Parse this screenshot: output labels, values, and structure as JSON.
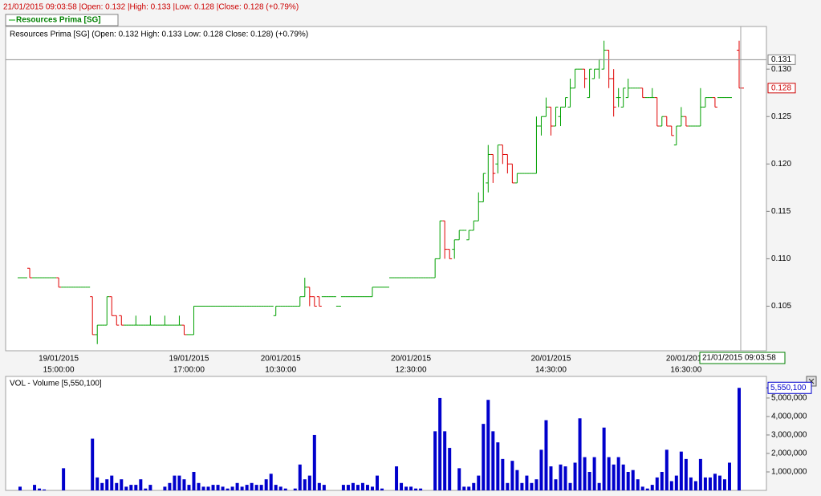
{
  "header": "21/01/2015 09:03:58 |Open: 0.132 |High: 0.133 |Low: 0.128 |Close: 0.128 (+0.79%)",
  "chart_data": [
    {
      "type": "ohlc",
      "title": "Resources Prima [SG] (Open: 0.132  High: 0.133  Low: 0.128  Close: 0.128) (+0.79%)",
      "categories": [
        null,
        null,
        null,
        null,
        null,
        null,
        null,
        null,
        [
          "19/01/2015",
          "15:00:00"
        ],
        null,
        null,
        null,
        null,
        null,
        null,
        null,
        null,
        null,
        null,
        null,
        null,
        null,
        null,
        null,
        null,
        null,
        null,
        null,
        null,
        null,
        null,
        null,
        null,
        null,
        null,
        [
          "19/01/2015",
          "17:00:00"
        ],
        null,
        null,
        null,
        null,
        null,
        null,
        null,
        null,
        null,
        null,
        null,
        null,
        null,
        null,
        null,
        null,
        null,
        null,
        [
          "20/01/2015",
          "10:30:00"
        ],
        null,
        null,
        null,
        null,
        null,
        null,
        null,
        null,
        null,
        null,
        null,
        null,
        null,
        null,
        null,
        null,
        null,
        null,
        null,
        null,
        null,
        null,
        null,
        null,
        null,
        null,
        [
          "20/01/2015",
          "12:30:00"
        ],
        null,
        null,
        null,
        null,
        null,
        null,
        null,
        null,
        null,
        null,
        null,
        null,
        null,
        null,
        null,
        null,
        null,
        null,
        null,
        null,
        null,
        null,
        null,
        null,
        null,
        null,
        null,
        null,
        [
          "20/01/2015",
          "14:30:00"
        ],
        null,
        null,
        null,
        null,
        null,
        null,
        null,
        null,
        null,
        null,
        null,
        null,
        null,
        null,
        null,
        null,
        null,
        null,
        null,
        null,
        null,
        null,
        null,
        null,
        null,
        null,
        null,
        [
          "20/01/2015",
          "16:30:00"
        ],
        null,
        null,
        null,
        null,
        null,
        null,
        null,
        null,
        null,
        null,
        null
      ],
      "series": [
        {
          "name": "Resources Prima [SG]",
          "up_color": "#00a000",
          "down_color": "#e00000",
          "open": [
            0.108,
            0.108,
            0.109,
            0.108,
            0.108,
            0.108,
            0.108,
            0.108,
            0.108,
            0.107,
            0.107,
            0.107,
            0.107,
            0.107,
            0.107,
            0.106,
            0.102,
            0.103,
            0.103,
            0.106,
            0.104,
            0.104,
            0.103,
            0.103,
            0.103,
            0.103,
            0.103,
            0.103,
            0.103,
            0.103,
            0.103,
            0.103,
            0.103,
            0.103,
            0.103,
            0.102,
            0.102,
            0.105,
            0.105,
            0.105,
            0.105,
            0.105,
            0.105,
            0.105,
            0.105,
            0.105,
            0.105,
            0.105,
            0.105,
            0.105,
            0.105,
            0.105,
            0.105,
            0.104,
            0.105,
            0.105,
            0.105,
            0.105,
            0.105,
            0.106,
            0.107,
            0.106,
            0.106,
            0.106,
            0.106,
            0.106,
            0.105,
            0.106,
            0.106,
            0.106,
            0.106,
            0.106,
            0.106,
            0.106,
            0.107,
            0.107,
            0.107,
            0.108,
            0.108,
            0.108,
            0.108,
            0.108,
            0.108,
            0.108,
            0.108,
            0.108,
            0.108,
            0.11,
            0.114,
            0.111,
            0.111,
            0.112,
            0.113,
            0.112,
            0.113,
            0.114,
            0.116,
            0.118,
            0.121,
            0.12,
            0.122,
            0.121,
            0.12,
            0.118,
            0.119,
            0.119,
            0.119,
            0.119,
            0.124,
            0.125,
            0.126,
            0.124,
            0.125,
            0.126,
            0.126,
            0.128,
            0.13,
            0.13,
            0.127,
            0.129,
            0.13,
            0.13,
            0.132,
            0.129,
            0.127,
            0.126,
            0.127,
            0.128,
            0.128,
            0.128,
            0.127,
            0.127,
            0.127,
            0.124,
            0.125,
            0.124,
            0.122,
            0.124,
            0.125,
            0.124,
            0.124,
            0.124,
            0.126,
            0.127,
            0.127,
            0.127,
            0.127,
            0.127,
            null,
            0.132
          ],
          "high": [
            0.108,
            0.108,
            0.109,
            0.108,
            0.108,
            0.108,
            0.108,
            0.108,
            0.108,
            0.107,
            0.107,
            0.107,
            0.107,
            0.107,
            0.107,
            0.106,
            0.103,
            0.103,
            0.106,
            0.106,
            0.104,
            0.104,
            0.103,
            0.103,
            0.104,
            0.103,
            0.103,
            0.104,
            0.103,
            0.103,
            0.104,
            0.103,
            0.103,
            0.104,
            0.103,
            0.102,
            0.105,
            0.105,
            0.105,
            0.105,
            0.105,
            0.105,
            0.105,
            0.105,
            0.105,
            0.105,
            0.105,
            0.105,
            0.105,
            0.105,
            0.105,
            0.105,
            0.105,
            0.105,
            0.105,
            0.105,
            0.105,
            0.105,
            0.106,
            0.108,
            0.107,
            0.106,
            0.106,
            0.106,
            0.106,
            0.106,
            0.105,
            0.106,
            0.106,
            0.106,
            0.106,
            0.106,
            0.106,
            0.107,
            0.107,
            0.107,
            0.107,
            0.108,
            0.108,
            0.108,
            0.108,
            0.108,
            0.108,
            0.108,
            0.108,
            0.108,
            0.11,
            0.114,
            0.114,
            0.111,
            0.112,
            0.113,
            0.113,
            0.113,
            0.114,
            0.117,
            0.119,
            0.122,
            0.121,
            0.122,
            0.122,
            0.121,
            0.12,
            0.119,
            0.119,
            0.119,
            0.119,
            0.125,
            0.125,
            0.127,
            0.126,
            0.126,
            0.126,
            0.127,
            0.129,
            0.13,
            0.13,
            0.13,
            0.13,
            0.13,
            0.131,
            0.133,
            0.132,
            0.13,
            0.128,
            0.128,
            0.129,
            0.128,
            0.128,
            0.128,
            0.127,
            0.128,
            0.127,
            0.125,
            0.125,
            0.124,
            0.124,
            0.126,
            0.125,
            0.124,
            0.124,
            0.128,
            0.127,
            0.127,
            0.127,
            0.127,
            0.127,
            0.127,
            null,
            0.133
          ],
          "low": [
            0.108,
            0.108,
            0.108,
            0.108,
            0.108,
            0.108,
            0.108,
            0.108,
            0.107,
            0.107,
            0.107,
            0.107,
            0.107,
            0.107,
            0.107,
            0.102,
            0.101,
            0.103,
            0.103,
            0.104,
            0.103,
            0.103,
            0.103,
            0.103,
            0.103,
            0.103,
            0.103,
            0.103,
            0.103,
            0.103,
            0.103,
            0.103,
            0.103,
            0.103,
            0.102,
            0.102,
            0.102,
            0.105,
            0.105,
            0.105,
            0.105,
            0.105,
            0.105,
            0.105,
            0.105,
            0.105,
            0.105,
            0.105,
            0.105,
            0.105,
            0.105,
            0.105,
            0.105,
            0.104,
            0.105,
            0.105,
            0.105,
            0.105,
            0.105,
            0.106,
            0.105,
            0.105,
            0.105,
            0.106,
            0.106,
            0.106,
            0.105,
            0.106,
            0.106,
            0.106,
            0.106,
            0.106,
            0.106,
            0.106,
            0.107,
            0.107,
            0.107,
            0.108,
            0.108,
            0.108,
            0.108,
            0.108,
            0.108,
            0.108,
            0.108,
            0.108,
            0.108,
            0.11,
            0.11,
            0.11,
            0.11,
            0.112,
            0.113,
            0.112,
            0.113,
            0.114,
            0.116,
            0.117,
            0.118,
            0.119,
            0.12,
            0.119,
            0.118,
            0.118,
            0.119,
            0.119,
            0.119,
            0.119,
            0.123,
            0.125,
            0.123,
            0.124,
            0.124,
            0.126,
            0.126,
            0.128,
            0.13,
            0.128,
            0.127,
            0.129,
            0.129,
            0.13,
            0.128,
            0.125,
            0.126,
            0.126,
            0.127,
            0.128,
            0.128,
            0.127,
            0.127,
            0.127,
            0.124,
            0.124,
            0.124,
            0.123,
            0.122,
            0.124,
            0.124,
            0.124,
            0.124,
            0.124,
            0.126,
            0.127,
            0.126,
            0.127,
            0.127,
            0.127,
            null,
            0.128
          ],
          "close": [
            0.108,
            0.108,
            0.108,
            0.108,
            0.108,
            0.108,
            0.108,
            0.108,
            0.107,
            0.107,
            0.107,
            0.107,
            0.107,
            0.107,
            0.107,
            0.102,
            0.103,
            0.103,
            0.106,
            0.104,
            0.103,
            0.103,
            0.103,
            0.103,
            0.103,
            0.103,
            0.103,
            0.103,
            0.103,
            0.103,
            0.103,
            0.103,
            0.103,
            0.103,
            0.102,
            0.102,
            0.105,
            0.105,
            0.105,
            0.105,
            0.105,
            0.105,
            0.105,
            0.105,
            0.105,
            0.105,
            0.105,
            0.105,
            0.105,
            0.105,
            0.105,
            0.105,
            0.105,
            0.105,
            0.105,
            0.105,
            0.105,
            0.105,
            0.106,
            0.107,
            0.106,
            0.105,
            0.105,
            0.106,
            0.106,
            0.106,
            0.105,
            0.106,
            0.106,
            0.106,
            0.106,
            0.106,
            0.106,
            0.107,
            0.107,
            0.107,
            0.107,
            0.108,
            0.108,
            0.108,
            0.108,
            0.108,
            0.108,
            0.108,
            0.108,
            0.108,
            0.11,
            0.114,
            0.111,
            0.11,
            0.112,
            0.113,
            0.113,
            0.113,
            0.114,
            0.116,
            0.119,
            0.121,
            0.119,
            0.122,
            0.121,
            0.12,
            0.118,
            0.119,
            0.119,
            0.119,
            0.119,
            0.124,
            0.125,
            0.126,
            0.124,
            0.126,
            0.126,
            0.127,
            0.128,
            0.13,
            0.13,
            0.129,
            0.13,
            0.13,
            0.131,
            0.132,
            0.129,
            0.126,
            0.127,
            0.128,
            0.128,
            0.128,
            0.128,
            0.127,
            0.127,
            0.127,
            0.124,
            0.125,
            0.124,
            0.123,
            0.124,
            0.125,
            0.124,
            0.124,
            0.124,
            0.126,
            0.127,
            0.127,
            0.126,
            0.127,
            0.127,
            0.127,
            null,
            0.128
          ]
        }
      ],
      "ylim": [
        0.1003,
        0.1345
      ],
      "yticks": [
        0.105,
        {
          "value": 0.11,
          "label": "0.110"
        },
        0.115,
        {
          "value": 0.12,
          "label": "0.120"
        },
        0.125,
        {
          "value": 0.13,
          "label": "0.130"
        }
      ],
      "hline": 0.131,
      "last_close": 0.128,
      "crosshair_label": "21/01/2015 09:03:58"
    },
    {
      "type": "bar",
      "title": "VOL - Volume [5,550,100]",
      "color": "#0000cc",
      "values": [
        200000,
        0,
        0,
        300000,
        100000,
        50000,
        0,
        0,
        0,
        1200000,
        0,
        0,
        0,
        0,
        0,
        2800000,
        700000,
        400000,
        600000,
        800000,
        400000,
        600000,
        200000,
        300000,
        300000,
        600000,
        100000,
        300000,
        0,
        0,
        200000,
        400000,
        800000,
        800000,
        600000,
        300000,
        1000000,
        400000,
        200000,
        200000,
        300000,
        300000,
        200000,
        100000,
        200000,
        400000,
        200000,
        300000,
        400000,
        300000,
        300000,
        600000,
        900000,
        300000,
        200000,
        100000,
        0,
        100000,
        1400000,
        600000,
        800000,
        3000000,
        400000,
        300000,
        0,
        0,
        0,
        300000,
        300000,
        400000,
        300000,
        400000,
        300000,
        200000,
        800000,
        100000,
        0,
        0,
        1300000,
        400000,
        200000,
        200000,
        100000,
        100000,
        0,
        0,
        3200000,
        5000000,
        3200000,
        2300000,
        0,
        1200000,
        200000,
        200000,
        400000,
        800000,
        3600000,
        4900000,
        3200000,
        2600000,
        1700000,
        400000,
        1600000,
        1100000,
        400000,
        800000,
        400000,
        600000,
        2200000,
        3800000,
        1300000,
        600000,
        1400000,
        1300000,
        400000,
        1500000,
        3900000,
        1800000,
        1000000,
        1800000,
        400000,
        3400000,
        1800000,
        1400000,
        1800000,
        1400000,
        1000000,
        1100000,
        600000,
        200000,
        100000,
        300000,
        700000,
        1000000,
        2200000,
        500000,
        800000,
        2100000,
        1700000,
        700000,
        500000,
        1700000,
        700000,
        700000,
        900000,
        800000,
        600000,
        1500000,
        0,
        5550100
      ],
      "ylim": [
        0,
        6170000
      ],
      "yticks": [
        {
          "value": 1000000,
          "label": "1,000,000"
        },
        {
          "value": 2000000,
          "label": "2,000,000"
        },
        {
          "value": 3000000,
          "label": "3,000,000"
        },
        {
          "value": 4000000,
          "label": "4,000,000"
        },
        {
          "value": 5000000,
          "label": "5,000,000"
        }
      ],
      "last_label": {
        "value": 5550100,
        "label": "5,550,100"
      }
    }
  ]
}
